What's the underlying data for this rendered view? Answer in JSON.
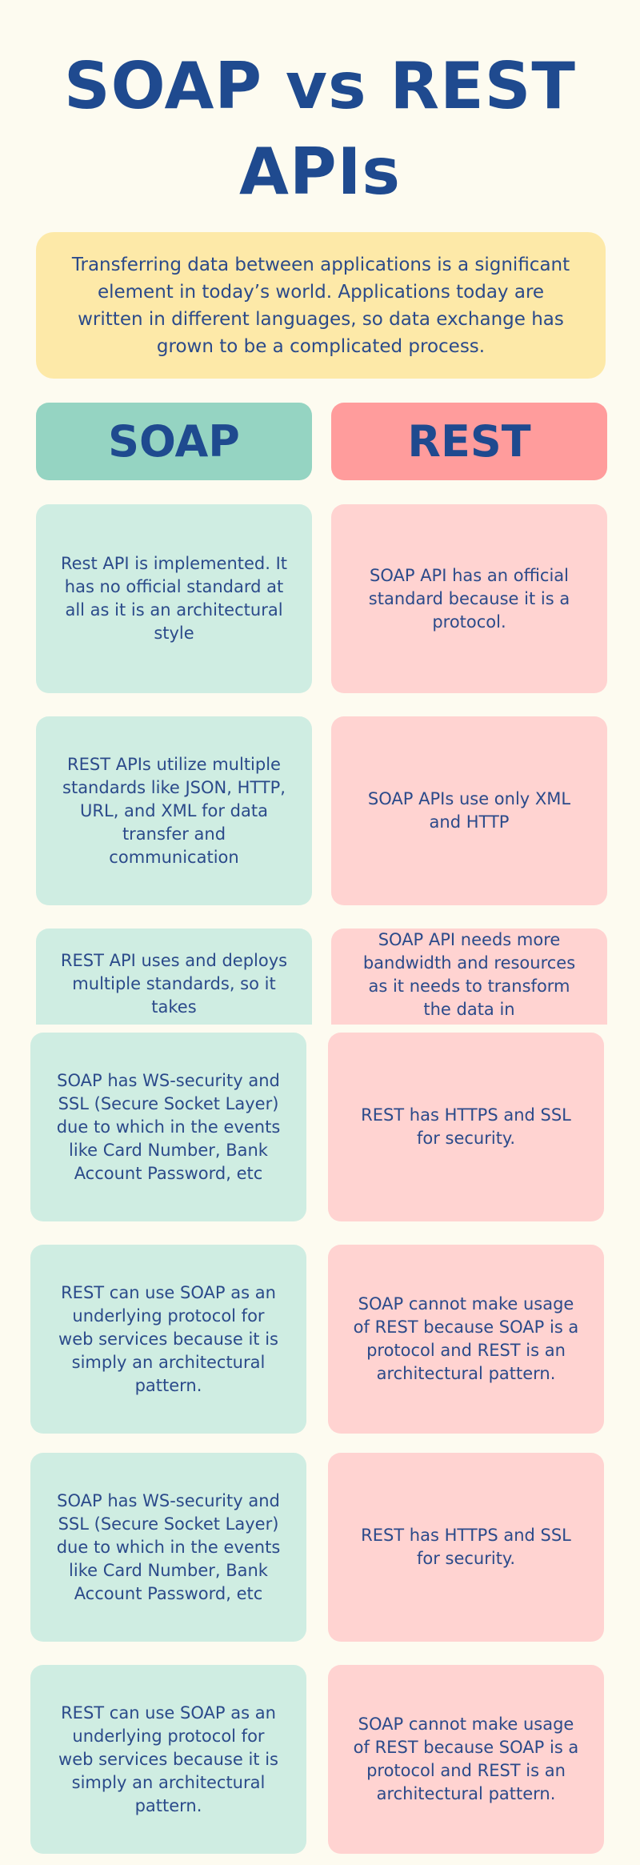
{
  "title": {
    "line1": "SOAP vs REST",
    "line2": "APIs"
  },
  "intro": "Transferring data between applications is a significant element in today’s world. Applications today are written in different languages, so data exchange has grown to be a complicated process.",
  "headers": {
    "left": "SOAP",
    "right": "REST"
  },
  "rows": [
    {
      "left": "Rest API is implemented. It has no official standard at all as it is an architectural style",
      "right": "SOAP API has an official standard because it is a protocol."
    },
    {
      "left": "REST APIs utilize multiple standards like JSON, HTTP, URL, and XML for data transfer and communication",
      "right": "SOAP APIs use only XML and HTTP"
    },
    {
      "left": "REST API uses and deploys multiple standards, so it takes",
      "right": "SOAP API needs more bandwidth and resources as it needs to transform the data in"
    },
    {
      "left": "SOAP has WS-security and SSL (Secure Socket Layer) due to which in the events like Card Number, Bank Account Password, etc",
      "right": "REST has HTTPS and SSL for security."
    },
    {
      "left": "REST can use SOAP as an underlying protocol for web services because it is simply an architectural pattern.",
      "right": "SOAP cannot make usage of REST because SOAP is a protocol and REST is an architectural pattern."
    },
    {
      "left": "SOAP has WS-security and SSL (Secure Socket Layer) due to which in the events like Card Number, Bank Account Password, etc",
      "right": "REST has HTTPS and SSL for security."
    },
    {
      "left": "REST can use SOAP as an underlying protocol for web services because it is simply an architectural pattern.",
      "right": "SOAP cannot make usage of REST because SOAP is a protocol and REST is an architectural pattern."
    }
  ]
}
